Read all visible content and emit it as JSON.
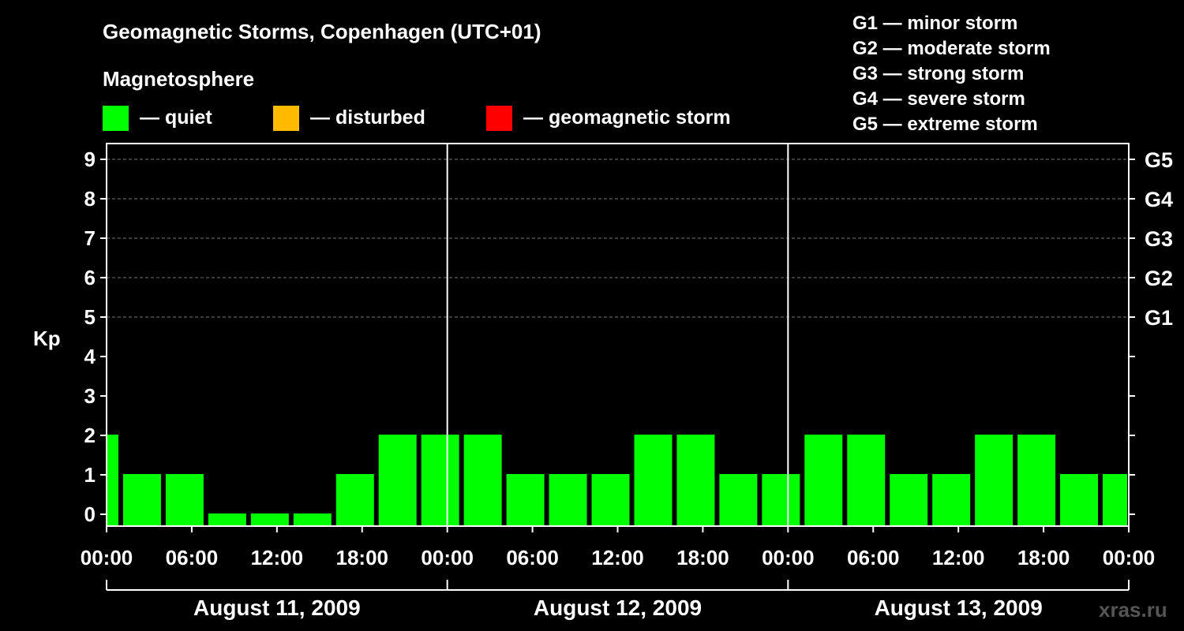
{
  "chart_data": {
    "type": "bar",
    "title": "Geomagnetic Storms, Copenhagen (UTC+01)",
    "subtitle": "Magnetosphere",
    "ylabel": "Kp",
    "ylim": [
      0,
      9
    ],
    "yticks": [
      "0",
      "1",
      "2",
      "3",
      "4",
      "5",
      "6",
      "7",
      "8",
      "9"
    ],
    "storm_scale_labels": [
      {
        "label": "G1",
        "kp": 5
      },
      {
        "label": "G2",
        "kp": 6
      },
      {
        "label": "G3",
        "kp": 7
      },
      {
        "label": "G4",
        "kp": 8
      },
      {
        "label": "G5",
        "kp": 9
      }
    ],
    "storm_legend": [
      "G1 — minor storm",
      "G2 — moderate storm",
      "G3 — strong storm",
      "G4 — severe storm",
      "G5 — extreme storm"
    ],
    "status_legend": [
      {
        "label": "— quiet",
        "color": "#00ff00"
      },
      {
        "label": "— disturbed",
        "color": "#ffbb00"
      },
      {
        "label": "— geomagnetic storm",
        "color": "#ff0000"
      }
    ],
    "x_hours": [
      0,
      72
    ],
    "xtick_labels": [
      "00:00",
      "06:00",
      "12:00",
      "18:00",
      "00:00",
      "06:00",
      "12:00",
      "18:00",
      "00:00",
      "06:00",
      "12:00",
      "18:00",
      "00:00"
    ],
    "days": [
      "August 11, 2009",
      "August 12, 2009",
      "August 13, 2009"
    ],
    "bar_color": "#00ff00",
    "bars": [
      {
        "start_hour": 0,
        "end_hour": 1,
        "kp": 2
      },
      {
        "start_hour": 1,
        "end_hour": 4,
        "kp": 1
      },
      {
        "start_hour": 4,
        "end_hour": 7,
        "kp": 1
      },
      {
        "start_hour": 7,
        "end_hour": 10,
        "kp": 0
      },
      {
        "start_hour": 10,
        "end_hour": 13,
        "kp": 0
      },
      {
        "start_hour": 13,
        "end_hour": 16,
        "kp": 0
      },
      {
        "start_hour": 16,
        "end_hour": 19,
        "kp": 1
      },
      {
        "start_hour": 19,
        "end_hour": 22,
        "kp": 2
      },
      {
        "start_hour": 22,
        "end_hour": 25,
        "kp": 2
      },
      {
        "start_hour": 25,
        "end_hour": 28,
        "kp": 2
      },
      {
        "start_hour": 28,
        "end_hour": 31,
        "kp": 1
      },
      {
        "start_hour": 31,
        "end_hour": 34,
        "kp": 1
      },
      {
        "start_hour": 34,
        "end_hour": 37,
        "kp": 1
      },
      {
        "start_hour": 37,
        "end_hour": 40,
        "kp": 2
      },
      {
        "start_hour": 40,
        "end_hour": 43,
        "kp": 2
      },
      {
        "start_hour": 43,
        "end_hour": 46,
        "kp": 1
      },
      {
        "start_hour": 46,
        "end_hour": 49,
        "kp": 1
      },
      {
        "start_hour": 49,
        "end_hour": 52,
        "kp": 2
      },
      {
        "start_hour": 52,
        "end_hour": 55,
        "kp": 2
      },
      {
        "start_hour": 55,
        "end_hour": 58,
        "kp": 1
      },
      {
        "start_hour": 58,
        "end_hour": 61,
        "kp": 1
      },
      {
        "start_hour": 61,
        "end_hour": 64,
        "kp": 2
      },
      {
        "start_hour": 64,
        "end_hour": 67,
        "kp": 2
      },
      {
        "start_hour": 67,
        "end_hour": 70,
        "kp": 1
      },
      {
        "start_hour": 70,
        "end_hour": 72,
        "kp": 1
      }
    ],
    "watermark": "xras.ru"
  }
}
